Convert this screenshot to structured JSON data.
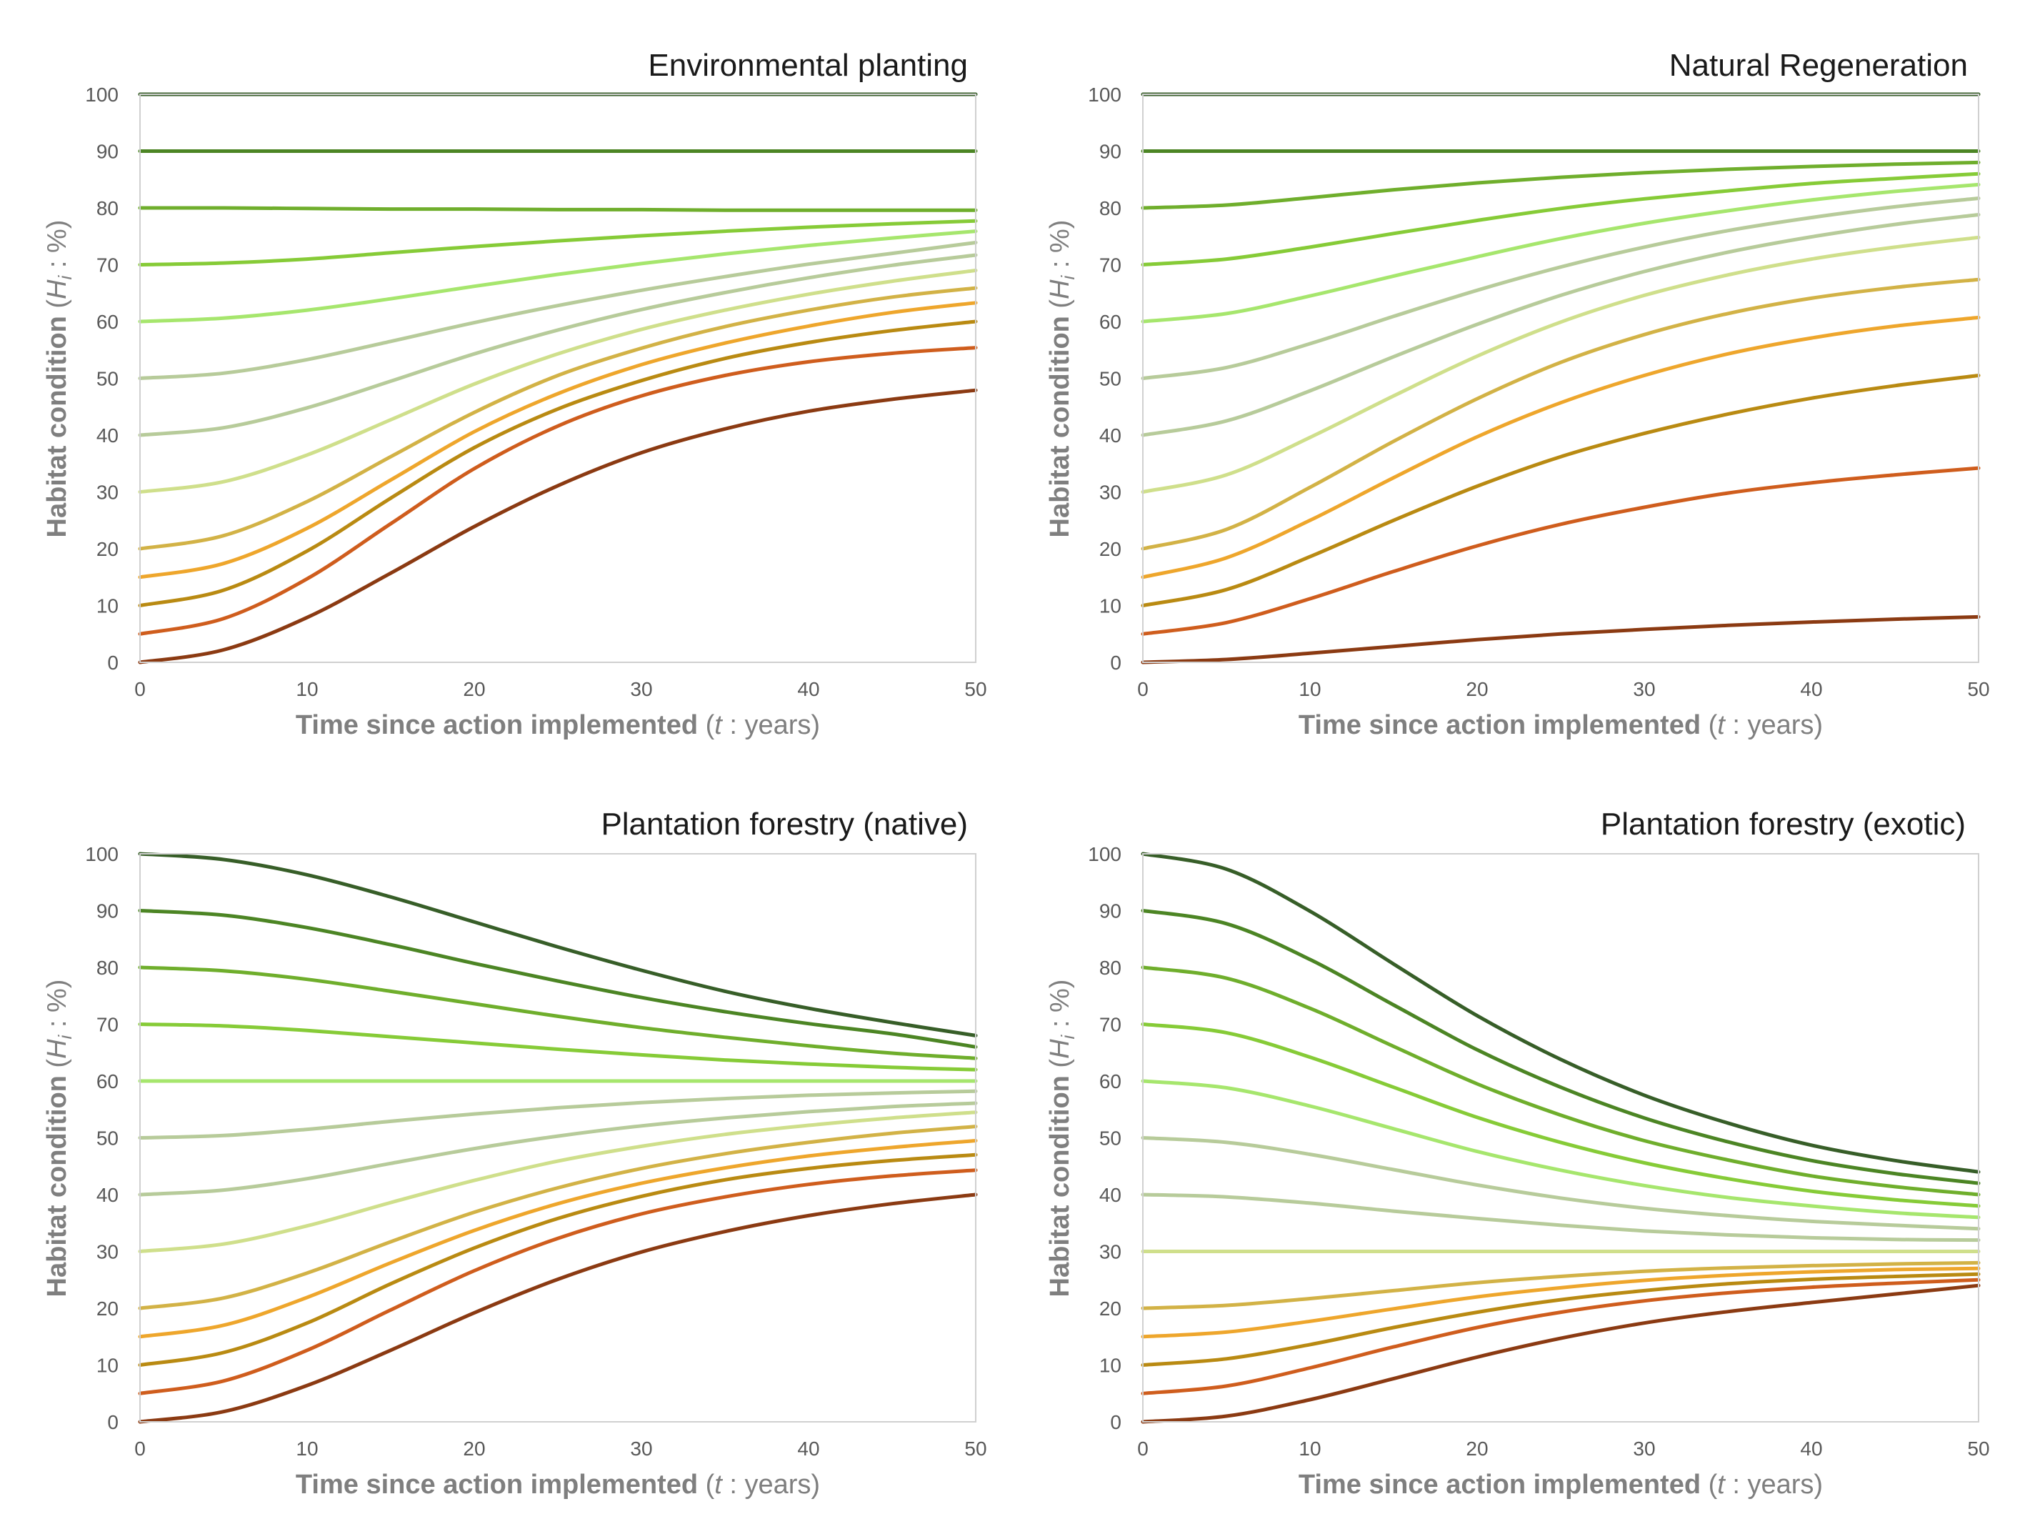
{
  "figure": {
    "xlabel_bold": "Time since action implemented",
    "xlabel_open": " (",
    "xlabel_var": "t",
    "xlabel_rest": " : years)",
    "ylabel_bold": "Habitat condition",
    "ylabel_open": " (",
    "ylabel_var": "H",
    "ylabel_sub": "i",
    "ylabel_rest": " : %)"
  },
  "colors": [
    "#8b3a12",
    "#cf5d1d",
    "#b98a12",
    "#eea62c",
    "#d2b246",
    "#cfdf8b",
    "#b7cb9a",
    "#a6e66d",
    "#86cb37",
    "#6fae2c",
    "#4c8524",
    "#375e28"
  ],
  "chart_data": [
    {
      "type": "line",
      "title": "Environmental planting",
      "xlim": [
        0,
        50
      ],
      "ylim": [
        0,
        100
      ],
      "xticks": [
        0,
        10,
        20,
        30,
        40,
        50
      ],
      "yticks": [
        0,
        10,
        20,
        30,
        40,
        50,
        60,
        70,
        80,
        90,
        100
      ],
      "x": [
        0,
        5,
        10,
        15,
        20,
        25,
        30,
        35,
        40,
        45,
        50
      ],
      "series": [
        {
          "name": "H0=0",
          "values": [
            0,
            2.2,
            7.9,
            15.7,
            23.9,
            31.1,
            36.9,
            41.1,
            44.2,
            46.3,
            47.9
          ]
        },
        {
          "name": "H0=5",
          "values": [
            5,
            7.7,
            14.7,
            24.4,
            34.1,
            41.6,
            46.9,
            50.5,
            52.9,
            54.4,
            55.4
          ]
        },
        {
          "name": "H0=10",
          "values": [
            10,
            12.7,
            19.6,
            28.9,
            37.8,
            44.6,
            49.6,
            53.5,
            56.3,
            58.4,
            60.0
          ]
        },
        {
          "name": "H0=15",
          "values": [
            15,
            17.4,
            23.6,
            32.1,
            40.6,
            47.3,
            52.4,
            56.2,
            59.2,
            61.6,
            63.3
          ]
        },
        {
          "name": "H0=20",
          "values": [
            20,
            22.3,
            28.3,
            36.2,
            44.0,
            50.5,
            55.3,
            59.1,
            62.0,
            64.3,
            65.9
          ]
        },
        {
          "name": "H0=30",
          "values": [
            30,
            31.8,
            36.5,
            42.7,
            49.0,
            54.3,
            58.6,
            62.0,
            64.8,
            67.1,
            69.0
          ]
        },
        {
          "name": "H0=40",
          "values": [
            40,
            41.3,
            44.8,
            49.5,
            54.3,
            58.5,
            62.1,
            65.1,
            67.7,
            69.9,
            71.7
          ]
        },
        {
          "name": "H0=50",
          "values": [
            50,
            50.9,
            53.3,
            56.5,
            59.8,
            62.8,
            65.5,
            67.9,
            70.1,
            72.0,
            73.9
          ]
        },
        {
          "name": "H0=60",
          "values": [
            60,
            60.6,
            62.0,
            64.0,
            66.2,
            68.3,
            70.2,
            71.9,
            73.4,
            74.7,
            75.9
          ]
        },
        {
          "name": "H0=70",
          "values": [
            70,
            70.3,
            71.0,
            72.1,
            73.2,
            74.2,
            75.1,
            75.9,
            76.6,
            77.2,
            77.7
          ]
        },
        {
          "name": "H0=80",
          "values": [
            80,
            80.0,
            79.9,
            79.8,
            79.8,
            79.7,
            79.7,
            79.6,
            79.6,
            79.6,
            79.6
          ]
        },
        {
          "name": "H0=90",
          "values": [
            90,
            90,
            90,
            90,
            90,
            90,
            90,
            90,
            90,
            90,
            90
          ]
        },
        {
          "name": "H0=100",
          "values": [
            100,
            100,
            100,
            100,
            100,
            100,
            100,
            100,
            100,
            100,
            100
          ]
        }
      ]
    },
    {
      "type": "line",
      "title": "Natural Regeneration",
      "xlim": [
        0,
        50
      ],
      "ylim": [
        0,
        100
      ],
      "xticks": [
        0,
        10,
        20,
        30,
        40,
        50
      ],
      "yticks": [
        0,
        10,
        20,
        30,
        40,
        50,
        60,
        70,
        80,
        90,
        100
      ],
      "x": [
        0,
        5,
        10,
        15,
        20,
        25,
        30,
        35,
        40,
        45,
        50
      ],
      "series": [
        {
          "name": "H0=0",
          "values": [
            0,
            0.5,
            1.6,
            2.8,
            4.0,
            5.0,
            5.8,
            6.5,
            7.1,
            7.6,
            8.0
          ]
        },
        {
          "name": "H0=5",
          "values": [
            5,
            7.0,
            11.2,
            16.0,
            20.5,
            24.3,
            27.3,
            29.8,
            31.6,
            33.0,
            34.2
          ]
        },
        {
          "name": "H0=10",
          "values": [
            10,
            12.8,
            18.6,
            25.0,
            31.0,
            36.2,
            40.3,
            43.7,
            46.5,
            48.7,
            50.5
          ]
        },
        {
          "name": "H0=15",
          "values": [
            15,
            18.4,
            25.0,
            32.5,
            39.7,
            45.7,
            50.5,
            54.3,
            57.1,
            59.2,
            60.7
          ]
        },
        {
          "name": "H0=20",
          "values": [
            20,
            23.4,
            30.8,
            38.9,
            46.4,
            52.8,
            57.7,
            61.4,
            64.1,
            66.0,
            67.4
          ]
        },
        {
          "name": "H0=30",
          "values": [
            30,
            33.0,
            39.6,
            46.9,
            53.9,
            59.9,
            64.6,
            68.2,
            71.0,
            73.1,
            74.8
          ]
        },
        {
          "name": "H0=40",
          "values": [
            40,
            42.5,
            47.8,
            53.8,
            59.5,
            64.6,
            68.8,
            72.2,
            74.9,
            77.1,
            78.8
          ]
        },
        {
          "name": "H0=50",
          "values": [
            50,
            51.9,
            56.1,
            60.9,
            65.5,
            69.6,
            73.1,
            76.0,
            78.3,
            80.2,
            81.7
          ]
        },
        {
          "name": "H0=60",
          "values": [
            60,
            61.4,
            64.5,
            68.0,
            71.4,
            74.6,
            77.3,
            79.5,
            81.4,
            82.9,
            84.1
          ]
        },
        {
          "name": "H0=70",
          "values": [
            70,
            71.0,
            73.1,
            75.5,
            77.8,
            79.9,
            81.6,
            83.0,
            84.3,
            85.2,
            86.0
          ]
        },
        {
          "name": "H0=80",
          "values": [
            80,
            80.5,
            81.8,
            83.2,
            84.4,
            85.4,
            86.2,
            86.8,
            87.3,
            87.7,
            88.0
          ]
        },
        {
          "name": "H0=90",
          "values": [
            90,
            90,
            90,
            90,
            90,
            90,
            90,
            90,
            90,
            90,
            90
          ]
        },
        {
          "name": "H0=100",
          "values": [
            100,
            100,
            100,
            100,
            100,
            100,
            100,
            100,
            100,
            100,
            100
          ]
        }
      ]
    },
    {
      "type": "line",
      "title": "Plantation forestry (native)",
      "xlim": [
        0,
        50
      ],
      "ylim": [
        0,
        100
      ],
      "xticks": [
        0,
        10,
        20,
        30,
        40,
        50
      ],
      "yticks": [
        0,
        10,
        20,
        30,
        40,
        50,
        60,
        70,
        80,
        90,
        100
      ],
      "x": [
        0,
        5,
        10,
        15,
        20,
        25,
        30,
        35,
        40,
        45,
        50
      ],
      "series": [
        {
          "name": "H0=0",
          "values": [
            0,
            1.8,
            6.4,
            12.6,
            19.2,
            25.1,
            29.9,
            33.5,
            36.3,
            38.4,
            40.0
          ]
        },
        {
          "name": "H0=5",
          "values": [
            5,
            7.2,
            12.6,
            19.7,
            26.6,
            32.3,
            36.6,
            39.6,
            41.8,
            43.3,
            44.3
          ]
        },
        {
          "name": "H0=10",
          "values": [
            10,
            12.2,
            17.4,
            24.3,
            30.6,
            35.8,
            39.7,
            42.6,
            44.6,
            46.0,
            47.0
          ]
        },
        {
          "name": "H0=15",
          "values": [
            15,
            17.0,
            21.9,
            28.0,
            33.7,
            38.4,
            42.0,
            44.7,
            46.8,
            48.3,
            49.5
          ]
        },
        {
          "name": "H0=20",
          "values": [
            20,
            21.8,
            26.2,
            31.7,
            36.9,
            41.2,
            44.6,
            47.2,
            49.2,
            50.8,
            52.0
          ]
        },
        {
          "name": "H0=30",
          "values": [
            30,
            31.3,
            34.5,
            38.6,
            42.5,
            45.9,
            48.5,
            50.6,
            52.2,
            53.5,
            54.5
          ]
        },
        {
          "name": "H0=40",
          "values": [
            40,
            40.8,
            42.8,
            45.5,
            48.1,
            50.3,
            52.1,
            53.5,
            54.6,
            55.5,
            56.1
          ]
        },
        {
          "name": "H0=50",
          "values": [
            50,
            50.4,
            51.5,
            52.9,
            54.2,
            55.3,
            56.2,
            56.9,
            57.5,
            57.9,
            58.2
          ]
        },
        {
          "name": "H0=60",
          "values": [
            60,
            60,
            60,
            60,
            60,
            60,
            60,
            60,
            60,
            60,
            60
          ]
        },
        {
          "name": "H0=70",
          "values": [
            70,
            69.7,
            68.9,
            67.8,
            66.7,
            65.6,
            64.6,
            63.7,
            63.0,
            62.4,
            62.0
          ]
        },
        {
          "name": "H0=80",
          "values": [
            80,
            79.4,
            77.9,
            75.8,
            73.6,
            71.4,
            69.4,
            67.7,
            66.2,
            64.9,
            64.0
          ]
        },
        {
          "name": "H0=90",
          "values": [
            90,
            89.2,
            87.0,
            84.0,
            80.7,
            77.6,
            74.7,
            72.2,
            70.1,
            68.3,
            66.0
          ]
        },
        {
          "name": "H0=100",
          "values": [
            100,
            99.0,
            96.3,
            92.4,
            88.0,
            83.6,
            79.5,
            75.8,
            72.8,
            70.3,
            68.0
          ]
        }
      ]
    },
    {
      "type": "line",
      "title": "Plantation forestry (exotic)",
      "xlim": [
        0,
        50
      ],
      "ylim": [
        0,
        100
      ],
      "xticks": [
        0,
        10,
        20,
        30,
        40,
        50
      ],
      "yticks": [
        0,
        10,
        20,
        30,
        40,
        50,
        60,
        70,
        80,
        90,
        100
      ],
      "x": [
        0,
        5,
        10,
        15,
        20,
        25,
        30,
        35,
        40,
        45,
        50
      ],
      "series": [
        {
          "name": "H0=0",
          "values": [
            0,
            1.0,
            3.9,
            7.6,
            11.4,
            14.7,
            17.4,
            19.4,
            21.0,
            22.5,
            24.0
          ]
        },
        {
          "name": "H0=5",
          "values": [
            5,
            6.3,
            9.5,
            13.2,
            16.6,
            19.3,
            21.3,
            22.7,
            23.7,
            24.4,
            25.0
          ]
        },
        {
          "name": "H0=10",
          "values": [
            10,
            11.1,
            13.6,
            16.6,
            19.3,
            21.5,
            23.1,
            24.3,
            25.1,
            25.6,
            26.0
          ]
        },
        {
          "name": "H0=15",
          "values": [
            15,
            15.8,
            17.7,
            19.9,
            22.0,
            23.6,
            24.9,
            25.8,
            26.4,
            26.8,
            27.0
          ]
        },
        {
          "name": "H0=20",
          "values": [
            20,
            20.5,
            21.7,
            23.1,
            24.5,
            25.6,
            26.5,
            27.1,
            27.5,
            27.8,
            28.0
          ]
        },
        {
          "name": "H0=30",
          "values": [
            30,
            30,
            30,
            30,
            30,
            30,
            30,
            30,
            30,
            30,
            30
          ]
        },
        {
          "name": "H0=40",
          "values": [
            40,
            39.6,
            38.5,
            37.1,
            35.8,
            34.6,
            33.6,
            32.9,
            32.4,
            32.1,
            32.0
          ]
        },
        {
          "name": "H0=50",
          "values": [
            50,
            49.2,
            47.1,
            44.4,
            41.7,
            39.4,
            37.6,
            36.3,
            35.3,
            34.6,
            34.0
          ]
        },
        {
          "name": "H0=60",
          "values": [
            60,
            58.8,
            55.6,
            51.6,
            47.6,
            44.3,
            41.6,
            39.5,
            38.0,
            36.8,
            36.0
          ]
        },
        {
          "name": "H0=70",
          "values": [
            70,
            68.5,
            64.2,
            58.9,
            53.6,
            49.2,
            45.6,
            42.8,
            40.6,
            39.1,
            38.0
          ]
        },
        {
          "name": "H0=80",
          "values": [
            80,
            78.1,
            72.8,
            66.1,
            59.5,
            54.0,
            49.5,
            46.1,
            43.3,
            41.4,
            40.0
          ]
        },
        {
          "name": "H0=90",
          "values": [
            90,
            87.7,
            81.4,
            73.4,
            65.5,
            58.9,
            53.5,
            49.3,
            46.0,
            43.7,
            42.0
          ]
        },
        {
          "name": "H0=100",
          "values": [
            100,
            97.3,
            89.9,
            80.6,
            71.5,
            63.8,
            57.5,
            52.6,
            48.7,
            46.0,
            44.0
          ]
        }
      ]
    }
  ]
}
